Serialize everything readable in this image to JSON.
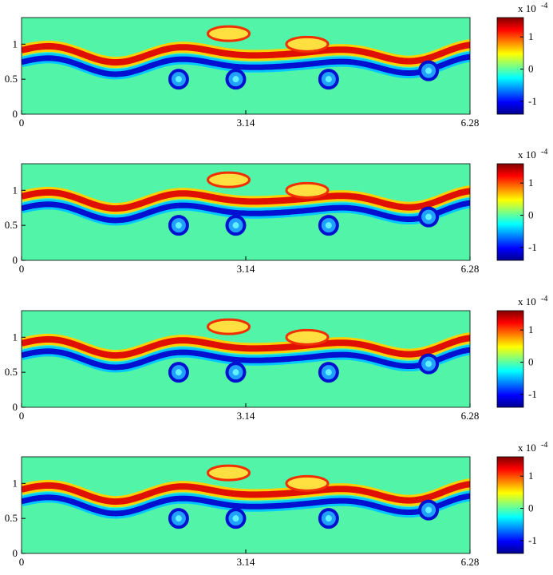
{
  "chart_data": [
    {
      "type": "heatmap",
      "xlim": [
        0,
        6.28
      ],
      "xticks": [
        0,
        3.14,
        6.28
      ],
      "ylim": [
        0,
        1.38
      ],
      "yticks": [
        0,
        0.5,
        1
      ],
      "clim": [
        -1.4,
        1.6
      ],
      "cticks": [
        -1,
        0,
        1
      ],
      "colorbar_label": "x 10",
      "colorbar_exponent": "-4",
      "colormap": "jet"
    },
    {
      "type": "heatmap",
      "xlim": [
        0,
        6.28
      ],
      "xticks": [
        0,
        3.14,
        6.28
      ],
      "ylim": [
        0,
        1.38
      ],
      "yticks": [
        0,
        0.5,
        1
      ],
      "clim": [
        -1.4,
        1.6
      ],
      "cticks": [
        -1,
        0,
        1
      ],
      "colorbar_label": "x 10",
      "colorbar_exponent": "-4",
      "colormap": "jet"
    },
    {
      "type": "heatmap",
      "xlim": [
        0,
        6.28
      ],
      "xticks": [
        0,
        3.14,
        6.28
      ],
      "ylim": [
        0,
        1.38
      ],
      "yticks": [
        0,
        0.5,
        1
      ],
      "clim": [
        -1.4,
        1.6
      ],
      "cticks": [
        -1,
        0,
        1
      ],
      "colorbar_label": "x 10",
      "colorbar_exponent": "-4",
      "colormap": "jet"
    },
    {
      "type": "heatmap",
      "xlim": [
        0,
        6.28
      ],
      "xticks": [
        0,
        3.14,
        6.28
      ],
      "ylim": [
        0,
        1.38
      ],
      "yticks": [
        0,
        0.5,
        1
      ],
      "clim": [
        -1.4,
        1.6
      ],
      "cticks": [
        -1,
        0,
        1
      ],
      "colorbar_label": "x 10",
      "colorbar_exponent": "-4",
      "colormap": "jet"
    }
  ]
}
